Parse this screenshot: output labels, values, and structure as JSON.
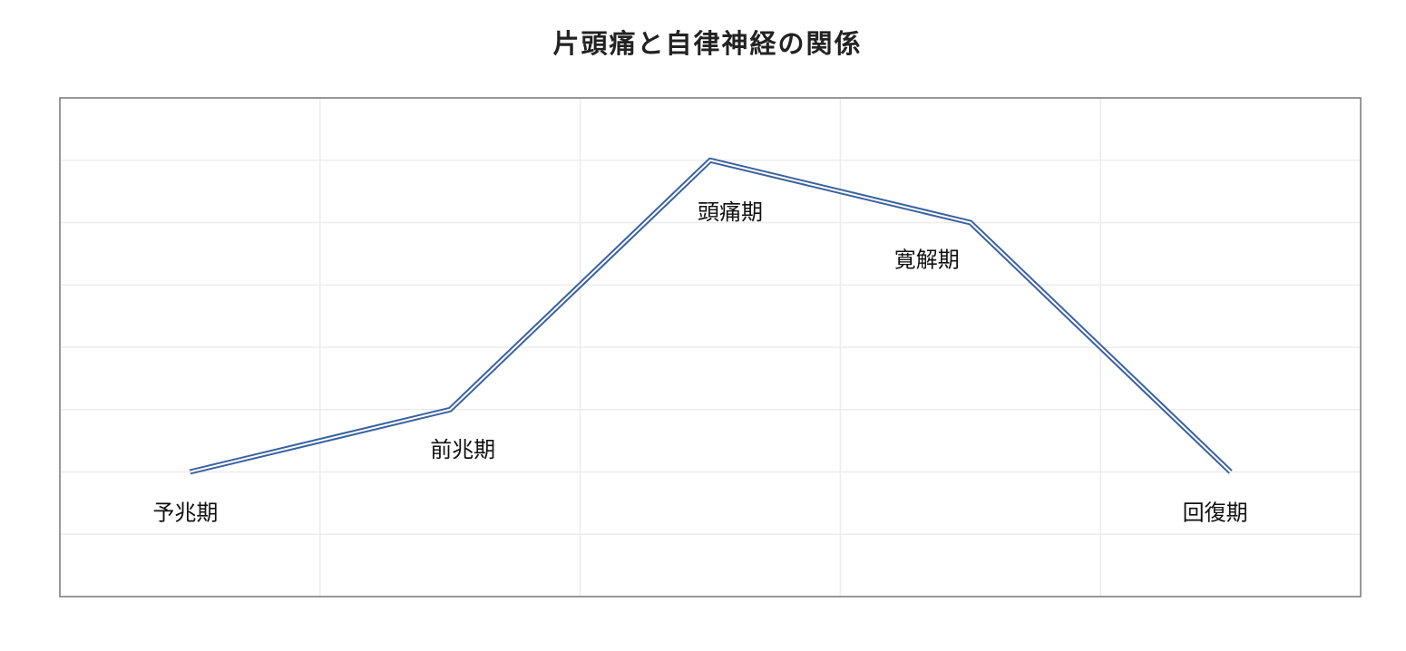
{
  "chart_data": {
    "type": "line",
    "title": "片頭痛と自律神経の関係",
    "categories": [
      "予兆期",
      "前兆期",
      "頭痛期",
      "寛解期",
      "回復期"
    ],
    "values": [
      2,
      3,
      7,
      6,
      2
    ],
    "color": "#3a62a0",
    "ylim": [
      0,
      8
    ],
    "yticks": [
      1,
      2,
      3,
      4,
      5,
      6,
      7
    ],
    "grid": true
  }
}
